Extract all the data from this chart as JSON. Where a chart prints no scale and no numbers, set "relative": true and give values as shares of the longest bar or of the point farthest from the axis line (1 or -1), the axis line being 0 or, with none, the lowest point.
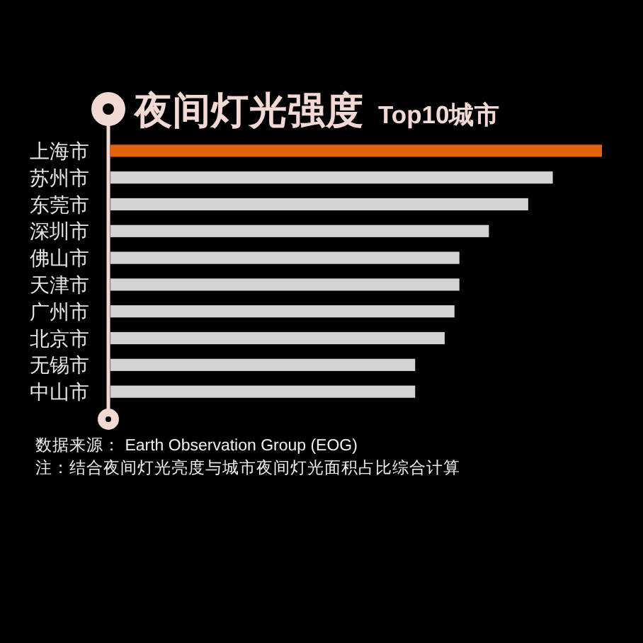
{
  "chart_data": {
    "type": "bar",
    "orientation": "horizontal",
    "relative": true,
    "title": "夜间灯光强度",
    "subtitle": "Top10城市",
    "categories": [
      "上海市",
      "苏州市",
      "东莞市",
      "深圳市",
      "佛山市",
      "天津市",
      "广州市",
      "北京市",
      "无锡市",
      "中山市"
    ],
    "values": [
      1,
      0.9,
      0.85,
      0.77,
      0.71,
      0.71,
      0.7,
      0.68,
      0.62,
      0.62
    ],
    "colors": [
      "#e2620e",
      "#d3d3d3",
      "#d3d3d3",
      "#d3d3d3",
      "#d3d3d3",
      "#d3d3d3",
      "#d3d3d3",
      "#d3d3d3",
      "#d3d3d3",
      "#d3d3d3"
    ],
    "annotations": [
      "数据来源： Earth Observation Group (EOG)",
      "注：结合夜间灯光亮度与城市夜间灯光面积占比综合计算"
    ]
  }
}
